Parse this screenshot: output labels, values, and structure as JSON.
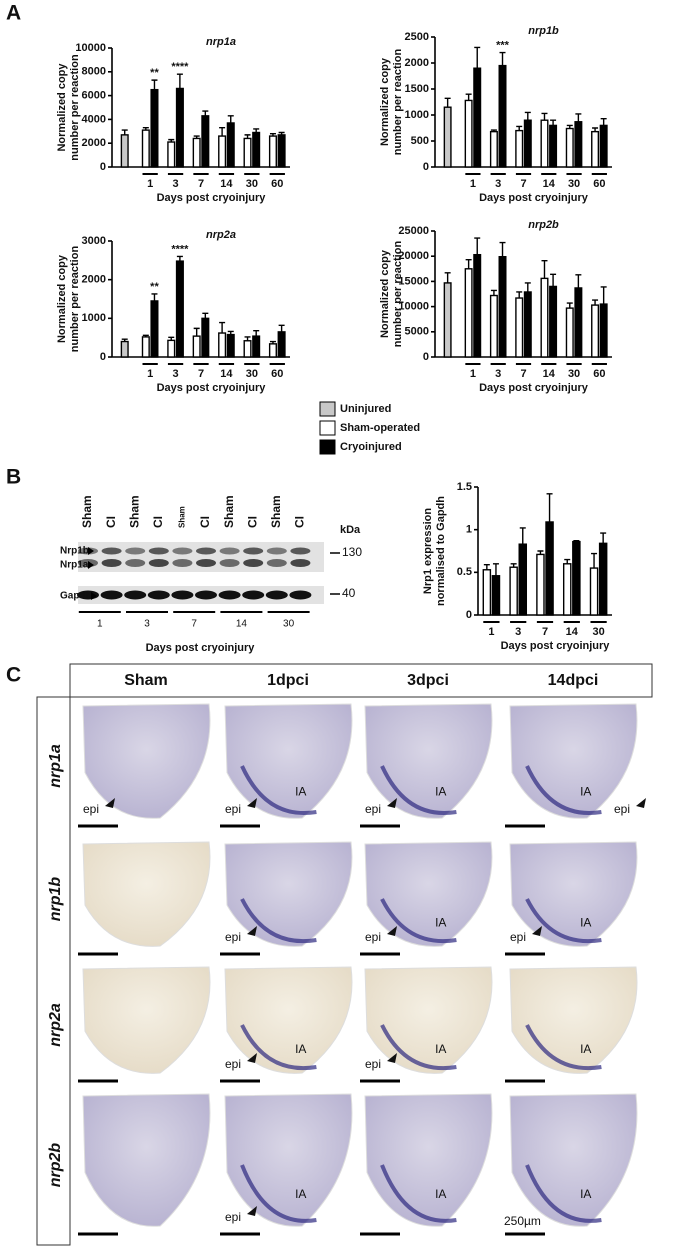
{
  "panel_labels": [
    "A",
    "B",
    "C"
  ],
  "chart_data": [
    {
      "type": "bar",
      "title": "nrp1a",
      "ylabel": [
        "Normalized copy",
        "number per reaction"
      ],
      "xlabel": "Days post cryoinjury",
      "categories": [
        null,
        "1",
        "3",
        "7",
        "14",
        "30",
        "60"
      ],
      "ylim": [
        0,
        10000
      ],
      "yticks": [
        0,
        2000,
        4000,
        6000,
        8000,
        10000
      ],
      "series": [
        {
          "name": "Uninjured",
          "color": "#c8c8c8",
          "values": [
            2700,
            null,
            null,
            null,
            null,
            null,
            null
          ],
          "errors": [
            400,
            null,
            null,
            null,
            null,
            null,
            null
          ]
        },
        {
          "name": "Sham-operated",
          "color": "#ffffff",
          "values": [
            null,
            3100,
            2100,
            2400,
            2600,
            2400,
            2600
          ],
          "errors": [
            null,
            200,
            200,
            200,
            700,
            300,
            200
          ]
        },
        {
          "name": "Cryoinjured",
          "color": "#000000",
          "values": [
            null,
            6500,
            6600,
            4300,
            3700,
            2900,
            2700
          ],
          "errors": [
            null,
            800,
            1200,
            400,
            600,
            300,
            200
          ],
          "significance": [
            null,
            "**",
            "****",
            null,
            null,
            null,
            null
          ]
        }
      ]
    },
    {
      "type": "bar",
      "title": "nrp1b",
      "ylabel": [
        "Normalized copy",
        "number per reaction"
      ],
      "xlabel": "Days post cryoinjury",
      "categories": [
        null,
        "1",
        "3",
        "7",
        "14",
        "30",
        "60"
      ],
      "ylim": [
        0,
        2500
      ],
      "yticks": [
        0,
        500,
        1000,
        1500,
        2000,
        2500
      ],
      "series": [
        {
          "color": "#c8c8c8",
          "values": [
            1150,
            null,
            null,
            null,
            null,
            null,
            null
          ],
          "errors": [
            170,
            null,
            null,
            null,
            null,
            null,
            null
          ]
        },
        {
          "color": "#ffffff",
          "values": [
            null,
            1280,
            680,
            700,
            900,
            740,
            680
          ],
          "errors": [
            null,
            120,
            30,
            80,
            130,
            60,
            70
          ]
        },
        {
          "color": "#000000",
          "values": [
            null,
            1900,
            1950,
            900,
            800,
            870,
            800
          ],
          "errors": [
            null,
            400,
            250,
            150,
            100,
            150,
            130
          ],
          "significance": [
            null,
            null,
            "***",
            null,
            null,
            null,
            null
          ]
        }
      ]
    },
    {
      "type": "bar",
      "title": "nrp2a",
      "ylabel": [
        "Normalized copy",
        "number per reaction"
      ],
      "xlabel": "Days post cryoinjury",
      "categories": [
        null,
        "1",
        "3",
        "7",
        "14",
        "30",
        "60"
      ],
      "ylim": [
        0,
        3000
      ],
      "yticks": [
        0,
        1000,
        2000,
        3000
      ],
      "series": [
        {
          "color": "#c8c8c8",
          "values": [
            400,
            null,
            null,
            null,
            null,
            null,
            null
          ],
          "errors": [
            60,
            null,
            null,
            null,
            null,
            null,
            null
          ]
        },
        {
          "color": "#ffffff",
          "values": [
            null,
            520,
            430,
            540,
            620,
            420,
            340
          ],
          "errors": [
            null,
            40,
            80,
            200,
            270,
            100,
            60
          ]
        },
        {
          "color": "#000000",
          "values": [
            null,
            1450,
            2480,
            1000,
            580,
            540,
            650
          ],
          "errors": [
            null,
            180,
            120,
            130,
            80,
            140,
            170
          ],
          "significance": [
            null,
            "**",
            "****",
            null,
            null,
            null,
            null
          ]
        }
      ]
    },
    {
      "type": "bar",
      "title": "nrp2b",
      "ylabel": [
        "Normalized copy",
        "number per reaction"
      ],
      "xlabel": "Days post cryoinjury",
      "categories": [
        null,
        "1",
        "3",
        "7",
        "14",
        "30",
        "60"
      ],
      "ylim": [
        0,
        25000
      ],
      "yticks": [
        0,
        5000,
        10000,
        15000,
        20000,
        25000
      ],
      "series": [
        {
          "color": "#c8c8c8",
          "values": [
            14700,
            null,
            null,
            null,
            null,
            null,
            null
          ],
          "errors": [
            2000,
            null,
            null,
            null,
            null,
            null,
            null
          ]
        },
        {
          "color": "#ffffff",
          "values": [
            null,
            17500,
            12200,
            11700,
            15600,
            9700,
            10300
          ],
          "errors": [
            null,
            1800,
            1000,
            1200,
            3500,
            1000,
            1000
          ]
        },
        {
          "color": "#000000",
          "values": [
            null,
            20300,
            19900,
            12900,
            14000,
            13700,
            10500
          ],
          "errors": [
            null,
            3300,
            2800,
            1800,
            2400,
            2600,
            3400
          ]
        }
      ]
    },
    {
      "type": "bar",
      "ylabel": [
        "Nrp1 expression",
        "normalised to Gapdh"
      ],
      "xlabel": "Days post cryoinjury",
      "categories": [
        "1",
        "3",
        "7",
        "14",
        "30"
      ],
      "ylim": [
        0,
        1.5
      ],
      "yticks": [
        0,
        0.5,
        1,
        1.5
      ],
      "series": [
        {
          "color": "#ffffff",
          "values": [
            0.53,
            0.56,
            0.71,
            0.6,
            0.55
          ],
          "errors": [
            0.06,
            0.04,
            0.04,
            0.05,
            0.17
          ]
        },
        {
          "color": "#000000",
          "values": [
            0.46,
            0.83,
            1.09,
            0.86,
            0.84
          ],
          "errors": [
            0.14,
            0.19,
            0.33,
            0.01,
            0.12
          ]
        }
      ]
    }
  ],
  "blot": {
    "lanes": [
      "Sham",
      "CI",
      "Sham",
      "CI",
      "Sham",
      "CI",
      "Sham",
      "CI",
      "Sham",
      "CI"
    ],
    "unit": "kDa",
    "markers": [
      "130",
      "40"
    ],
    "bands": [
      "Nrp1b",
      "Nrp1a",
      "Gapdh"
    ],
    "days": [
      "1",
      "3",
      "7",
      "14",
      "30"
    ],
    "xlabel": "Days post cryoinjury"
  },
  "histology": {
    "columns": [
      "Sham",
      "1dpci",
      "3dpci",
      "14dpci"
    ],
    "rows": [
      "nrp1a",
      "nrp1b",
      "nrp2a",
      "nrp2b"
    ],
    "cells": [
      [
        [
          "epi"
        ],
        [
          "epi",
          "IA"
        ],
        [
          "epi",
          "IA"
        ],
        [
          "IA",
          "epi"
        ]
      ],
      [
        [],
        [
          "epi"
        ],
        [
          "IA",
          "epi"
        ],
        [
          "IA",
          "epi"
        ]
      ],
      [
        [],
        [
          "epi",
          "IA"
        ],
        [
          "epi",
          "IA"
        ],
        [
          "IA"
        ]
      ],
      [
        [],
        [
          "IA",
          "epi"
        ],
        [
          "IA"
        ],
        [
          "IA"
        ]
      ]
    ],
    "scale_label": "250µm"
  }
}
